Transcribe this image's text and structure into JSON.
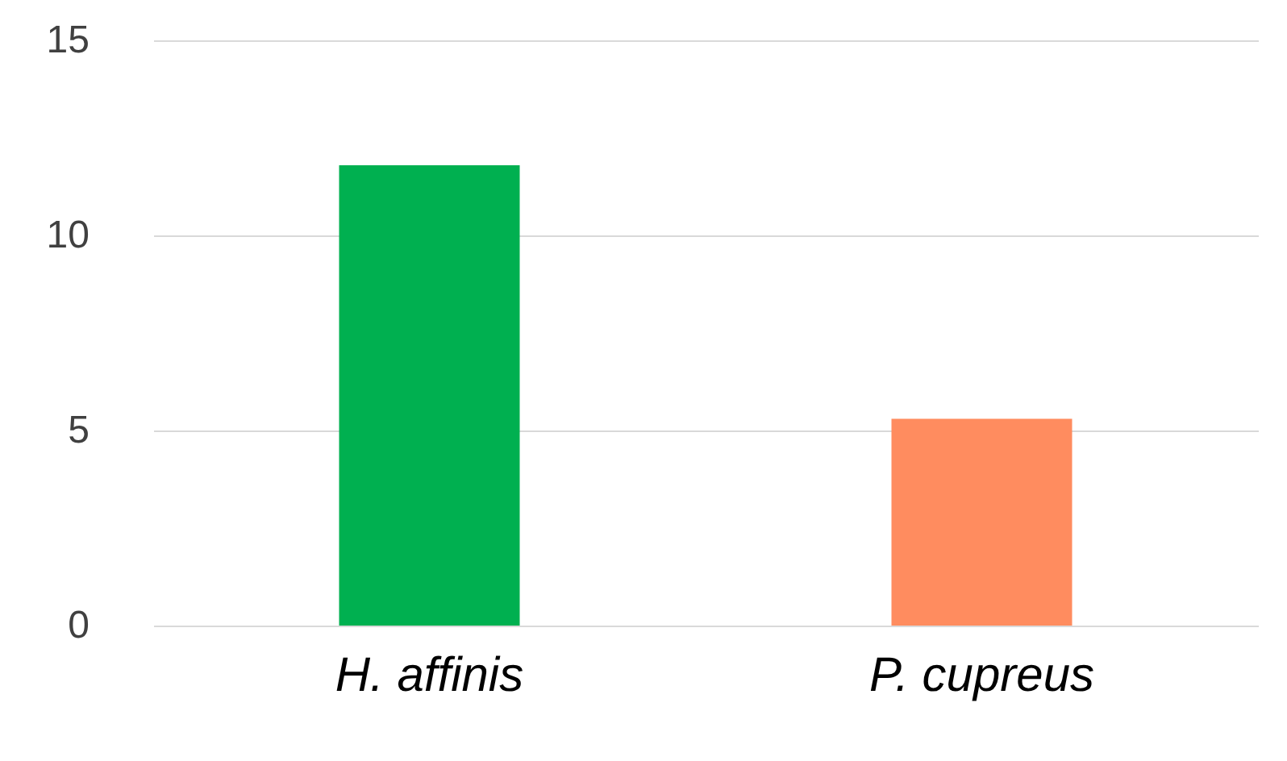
{
  "chart_data": {
    "type": "bar",
    "categories": [
      "H. affinis",
      "P. cupreus"
    ],
    "values": [
      11.8,
      5.3
    ],
    "colors": [
      "#00b050",
      "#ff8c5f"
    ],
    "ylim": [
      0,
      15
    ],
    "yticks": [
      0,
      5,
      10,
      15
    ],
    "grid": "y"
  }
}
